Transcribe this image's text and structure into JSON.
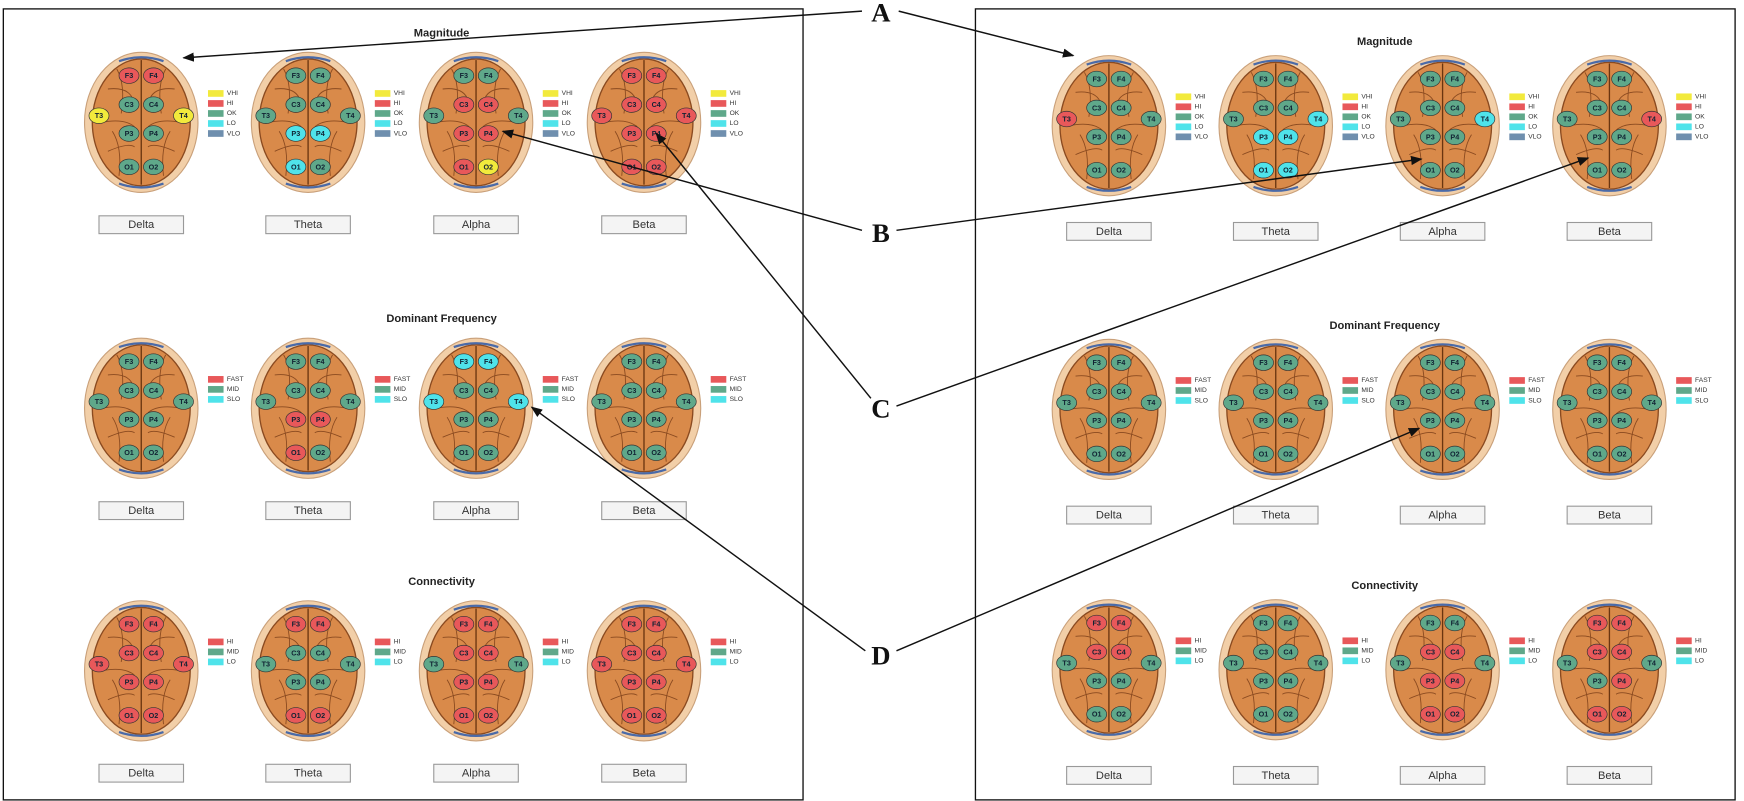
{
  "annotations": [
    {
      "label": "A"
    },
    {
      "label": "B"
    },
    {
      "label": "C"
    },
    {
      "label": "D"
    }
  ],
  "electrodes": [
    "F3",
    "F4",
    "C3",
    "C4",
    "T3",
    "T4",
    "P3",
    "P4",
    "O1",
    "O2"
  ],
  "panels": [
    {
      "sections": [
        {
          "title": "Magnitude",
          "legend": [
            {
              "label": "VHI",
              "color": "#f2ea3c"
            },
            {
              "label": "HI",
              "color": "#e8585a"
            },
            {
              "label": "OK",
              "color": "#5fa88a"
            },
            {
              "label": "LO",
              "color": "#4fe3ea"
            },
            {
              "label": "VLO",
              "color": "#6f8fae"
            }
          ],
          "brains": [
            {
              "button": "Delta",
              "colors": [
                "#e8585a",
                "#e8585a",
                "#5fa88a",
                "#5fa88a",
                "#f2ea3c",
                "#f2ea3c",
                "#5fa88a",
                "#5fa88a",
                "#5fa88a",
                "#5fa88a"
              ]
            },
            {
              "button": "Theta",
              "colors": [
                "#5fa88a",
                "#5fa88a",
                "#5fa88a",
                "#5fa88a",
                "#5fa88a",
                "#5fa88a",
                "#4fe3ea",
                "#4fe3ea",
                "#4fe3ea",
                "#5fa88a"
              ]
            },
            {
              "button": "Alpha",
              "colors": [
                "#5fa88a",
                "#5fa88a",
                "#e8585a",
                "#e8585a",
                "#5fa88a",
                "#5fa88a",
                "#e8585a",
                "#e8585a",
                "#e8585a",
                "#f2ea3c"
              ]
            },
            {
              "button": "Beta",
              "colors": [
                "#e8585a",
                "#e8585a",
                "#e8585a",
                "#e8585a",
                "#e8585a",
                "#e8585a",
                "#e8585a",
                "#e8585a",
                "#e8585a",
                "#e8585a"
              ]
            }
          ]
        },
        {
          "title": "Dominant Frequency",
          "legend": [
            {
              "label": "FAST",
              "color": "#e8585a"
            },
            {
              "label": "MID",
              "color": "#5fa88a"
            },
            {
              "label": "SLO",
              "color": "#4fe3ea"
            }
          ],
          "brains": [
            {
              "button": "Delta",
              "colors": [
                "#5fa88a",
                "#5fa88a",
                "#5fa88a",
                "#5fa88a",
                "#5fa88a",
                "#5fa88a",
                "#5fa88a",
                "#5fa88a",
                "#5fa88a",
                "#5fa88a"
              ]
            },
            {
              "button": "Theta",
              "colors": [
                "#5fa88a",
                "#5fa88a",
                "#5fa88a",
                "#5fa88a",
                "#5fa88a",
                "#5fa88a",
                "#e8585a",
                "#e8585a",
                "#e8585a",
                "#5fa88a"
              ]
            },
            {
              "button": "Alpha",
              "colors": [
                "#4fe3ea",
                "#4fe3ea",
                "#5fa88a",
                "#5fa88a",
                "#4fe3ea",
                "#4fe3ea",
                "#5fa88a",
                "#5fa88a",
                "#5fa88a",
                "#5fa88a"
              ]
            },
            {
              "button": "Beta",
              "colors": [
                "#5fa88a",
                "#5fa88a",
                "#5fa88a",
                "#5fa88a",
                "#5fa88a",
                "#5fa88a",
                "#5fa88a",
                "#5fa88a",
                "#5fa88a",
                "#5fa88a"
              ]
            }
          ]
        },
        {
          "title": "Connectivity",
          "legend": [
            {
              "label": "HI",
              "color": "#e8585a"
            },
            {
              "label": "MID",
              "color": "#5fa88a"
            },
            {
              "label": "LO",
              "color": "#4fe3ea"
            }
          ],
          "brains": [
            {
              "button": "Delta",
              "colors": [
                "#e8585a",
                "#e8585a",
                "#e8585a",
                "#e8585a",
                "#e8585a",
                "#e8585a",
                "#e8585a",
                "#e8585a",
                "#e8585a",
                "#e8585a"
              ]
            },
            {
              "button": "Theta",
              "colors": [
                "#e8585a",
                "#e8585a",
                "#5fa88a",
                "#5fa88a",
                "#5fa88a",
                "#5fa88a",
                "#5fa88a",
                "#5fa88a",
                "#e8585a",
                "#e8585a"
              ]
            },
            {
              "button": "Alpha",
              "colors": [
                "#e8585a",
                "#e8585a",
                "#e8585a",
                "#e8585a",
                "#5fa88a",
                "#5fa88a",
                "#e8585a",
                "#e8585a",
                "#e8585a",
                "#e8585a"
              ]
            },
            {
              "button": "Beta",
              "colors": [
                "#e8585a",
                "#e8585a",
                "#e8585a",
                "#e8585a",
                "#e8585a",
                "#e8585a",
                "#e8585a",
                "#e8585a",
                "#e8585a",
                "#e8585a"
              ]
            }
          ]
        }
      ]
    },
    {
      "sections": [
        {
          "title": "Magnitude",
          "legend": [
            {
              "label": "VHI",
              "color": "#f2ea3c"
            },
            {
              "label": "HI",
              "color": "#e8585a"
            },
            {
              "label": "OK",
              "color": "#5fa88a"
            },
            {
              "label": "LO",
              "color": "#4fe3ea"
            },
            {
              "label": "VLO",
              "color": "#6f8fae"
            }
          ],
          "brains": [
            {
              "button": "Delta",
              "colors": [
                "#5fa88a",
                "#5fa88a",
                "#5fa88a",
                "#5fa88a",
                "#e8585a",
                "#5fa88a",
                "#5fa88a",
                "#5fa88a",
                "#5fa88a",
                "#5fa88a"
              ]
            },
            {
              "button": "Theta",
              "colors": [
                "#5fa88a",
                "#5fa88a",
                "#5fa88a",
                "#5fa88a",
                "#5fa88a",
                "#4fe3ea",
                "#4fe3ea",
                "#4fe3ea",
                "#4fe3ea",
                "#4fe3ea"
              ]
            },
            {
              "button": "Alpha",
              "colors": [
                "#5fa88a",
                "#5fa88a",
                "#5fa88a",
                "#5fa88a",
                "#5fa88a",
                "#4fe3ea",
                "#5fa88a",
                "#5fa88a",
                "#5fa88a",
                "#5fa88a"
              ]
            },
            {
              "button": "Beta",
              "colors": [
                "#5fa88a",
                "#5fa88a",
                "#5fa88a",
                "#5fa88a",
                "#5fa88a",
                "#e8585a",
                "#5fa88a",
                "#5fa88a",
                "#5fa88a",
                "#5fa88a"
              ]
            }
          ]
        },
        {
          "title": "Dominant Frequency",
          "legend": [
            {
              "label": "FAST",
              "color": "#e8585a"
            },
            {
              "label": "MID",
              "color": "#5fa88a"
            },
            {
              "label": "SLO",
              "color": "#4fe3ea"
            }
          ],
          "brains": [
            {
              "button": "Delta",
              "colors": [
                "#5fa88a",
                "#5fa88a",
                "#5fa88a",
                "#5fa88a",
                "#5fa88a",
                "#5fa88a",
                "#5fa88a",
                "#5fa88a",
                "#5fa88a",
                "#5fa88a"
              ]
            },
            {
              "button": "Theta",
              "colors": [
                "#5fa88a",
                "#5fa88a",
                "#5fa88a",
                "#5fa88a",
                "#5fa88a",
                "#5fa88a",
                "#5fa88a",
                "#5fa88a",
                "#5fa88a",
                "#5fa88a"
              ]
            },
            {
              "button": "Alpha",
              "colors": [
                "#5fa88a",
                "#5fa88a",
                "#5fa88a",
                "#5fa88a",
                "#5fa88a",
                "#5fa88a",
                "#5fa88a",
                "#5fa88a",
                "#5fa88a",
                "#5fa88a"
              ]
            },
            {
              "button": "Beta",
              "colors": [
                "#5fa88a",
                "#5fa88a",
                "#5fa88a",
                "#5fa88a",
                "#5fa88a",
                "#5fa88a",
                "#5fa88a",
                "#5fa88a",
                "#5fa88a",
                "#5fa88a"
              ]
            }
          ]
        },
        {
          "title": "Connectivity",
          "legend": [
            {
              "label": "HI",
              "color": "#e8585a"
            },
            {
              "label": "MID",
              "color": "#5fa88a"
            },
            {
              "label": "LO",
              "color": "#4fe3ea"
            }
          ],
          "brains": [
            {
              "button": "Delta",
              "colors": [
                "#e8585a",
                "#e8585a",
                "#e8585a",
                "#e8585a",
                "#5fa88a",
                "#5fa88a",
                "#5fa88a",
                "#5fa88a",
                "#5fa88a",
                "#5fa88a"
              ]
            },
            {
              "button": "Theta",
              "colors": [
                "#5fa88a",
                "#5fa88a",
                "#5fa88a",
                "#5fa88a",
                "#5fa88a",
                "#5fa88a",
                "#5fa88a",
                "#5fa88a",
                "#5fa88a",
                "#5fa88a"
              ]
            },
            {
              "button": "Alpha",
              "colors": [
                "#5fa88a",
                "#5fa88a",
                "#e8585a",
                "#e8585a",
                "#5fa88a",
                "#5fa88a",
                "#e8585a",
                "#e8585a",
                "#e8585a",
                "#e8585a"
              ]
            },
            {
              "button": "Beta",
              "colors": [
                "#e8585a",
                "#e8585a",
                "#e8585a",
                "#e8585a",
                "#5fa88a",
                "#5fa88a",
                "#5fa88a",
                "#e8585a",
                "#e8585a",
                "#e8585a"
              ]
            }
          ]
        }
      ]
    }
  ]
}
